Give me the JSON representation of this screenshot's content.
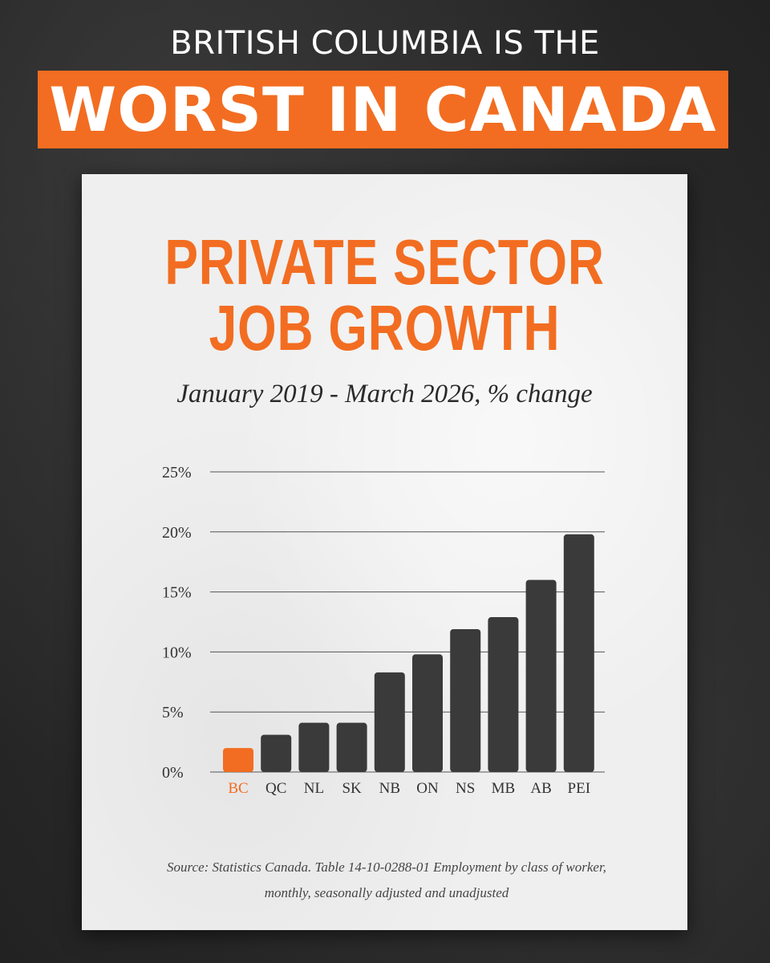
{
  "header": {
    "line1": "BRITISH COLUMBIA IS THE",
    "line2": "WORST IN CANADA"
  },
  "colors": {
    "accent": "#f26d21",
    "bar": "#3a3a3a",
    "gridline": "#555555"
  },
  "chart_data": {
    "type": "bar",
    "title_line1": "PRIVATE SECTOR",
    "title_line2": "JOB GROWTH",
    "subtitle": "January 2019 - March 2026, % change",
    "categories": [
      "BC",
      "QC",
      "NL",
      "SK",
      "NB",
      "ON",
      "NS",
      "MB",
      "AB",
      "PEI"
    ],
    "values": [
      2.0,
      3.1,
      4.1,
      4.1,
      8.3,
      9.8,
      11.9,
      12.9,
      16.0,
      19.8
    ],
    "highlight": "BC",
    "ylim": [
      0,
      25
    ],
    "yticks": [
      0,
      5,
      10,
      15,
      20,
      25
    ],
    "ytick_labels": [
      "0%",
      "5%",
      "10%",
      "15%",
      "20%",
      "25%"
    ],
    "grid": true,
    "source": "Source: Statistics Canada. Table 14-10-0288-01 Employment by class of worker, monthly, seasonally adjusted and unadjusted"
  }
}
